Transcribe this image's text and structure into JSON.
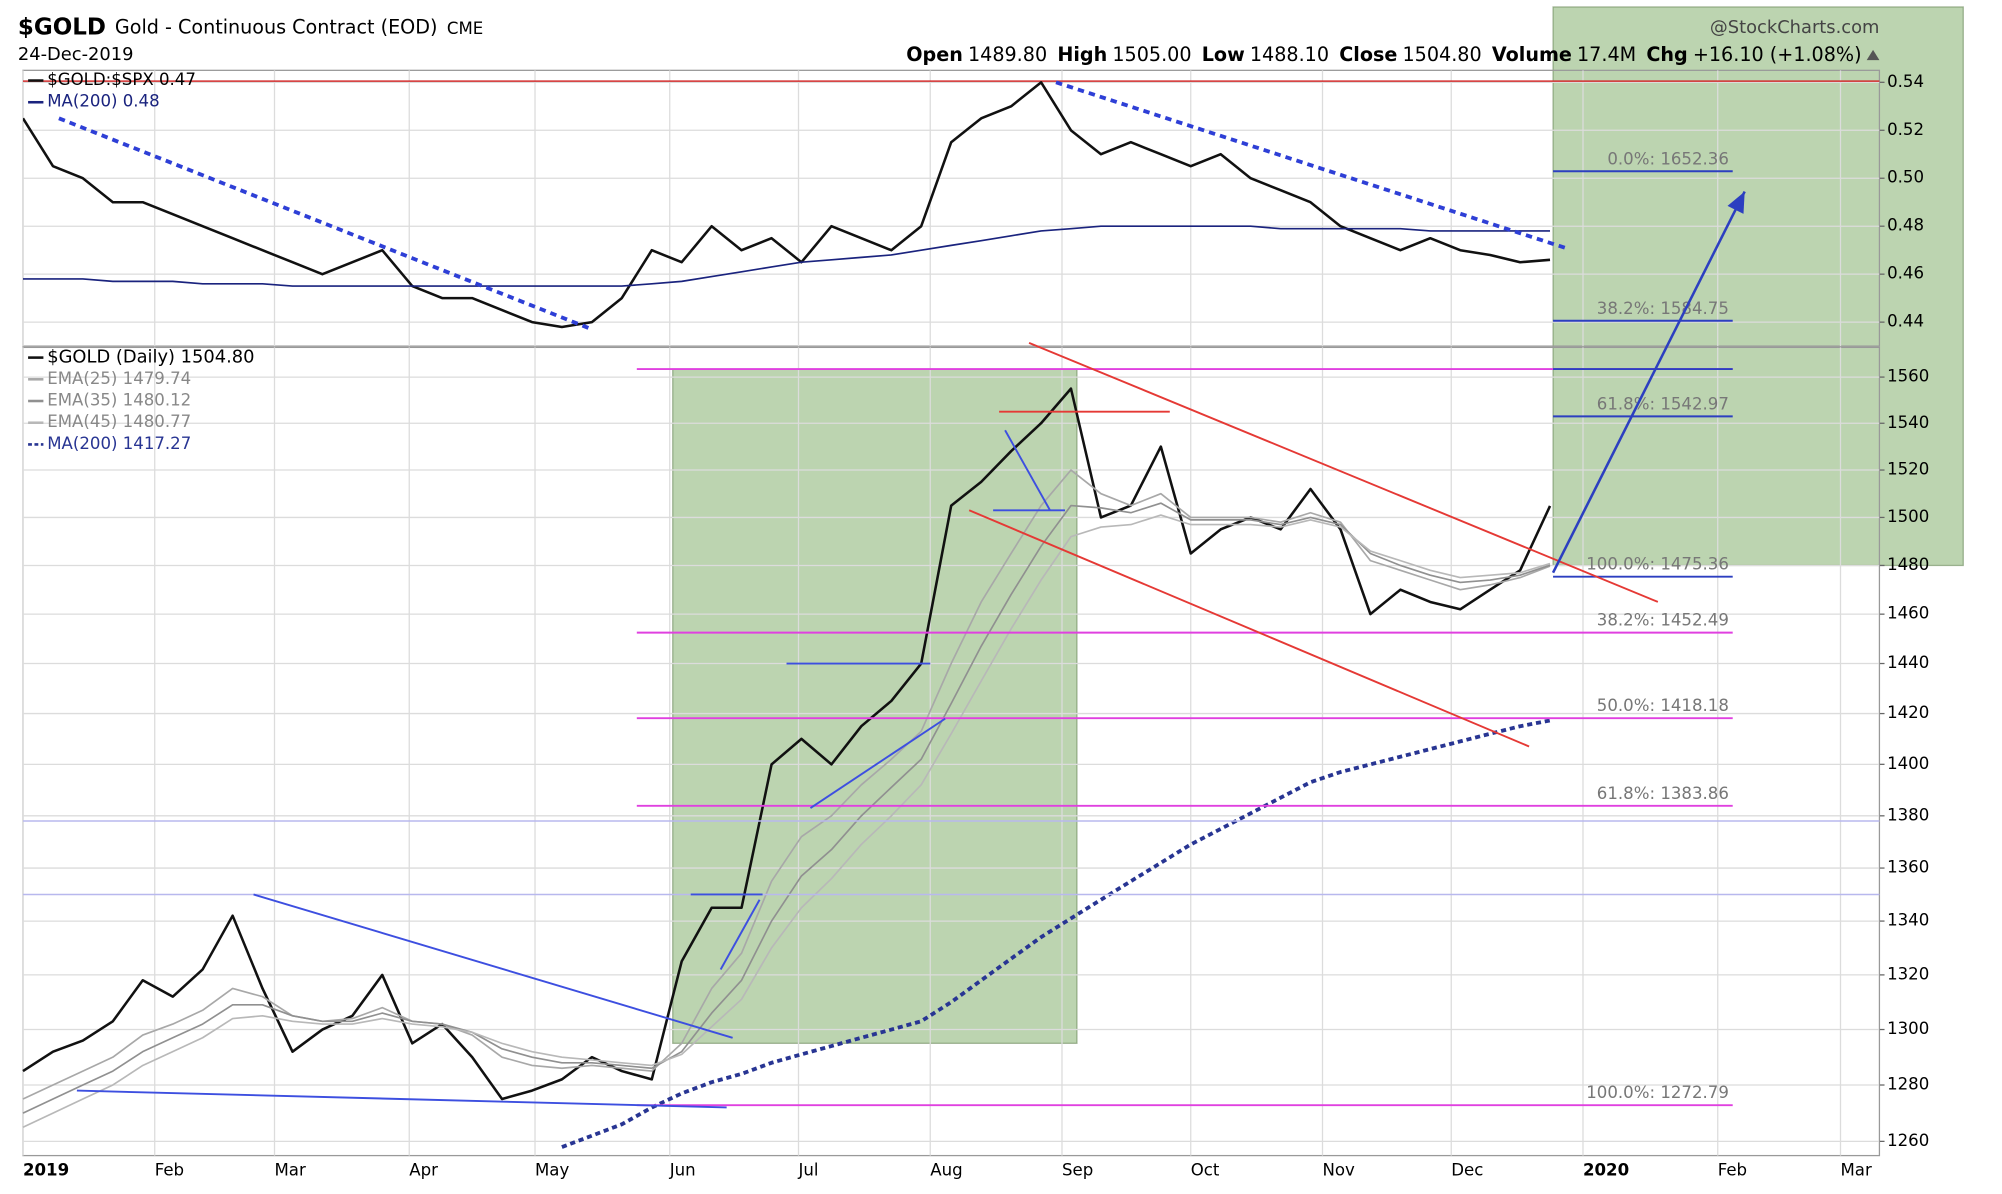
{
  "header": {
    "symbol": "$GOLD",
    "name": "Gold - Continuous Contract (EOD)",
    "exchange": "CME",
    "date": "24-Dec-2019",
    "source": "@StockCharts.com",
    "quote": [
      {
        "label": "Open",
        "value": "1489.80"
      },
      {
        "label": "High",
        "value": "1505.00"
      },
      {
        "label": "Low",
        "value": "1488.10"
      },
      {
        "label": "Close",
        "value": "1504.80"
      },
      {
        "label": "Volume",
        "value": "17.4M"
      },
      {
        "label": "Chg",
        "value": "+16.10 (+1.08%)"
      }
    ]
  },
  "chart_data": [
    {
      "type": "line",
      "x": [
        0,
        1,
        2,
        3,
        4,
        5,
        6,
        7,
        8,
        9,
        10,
        11,
        12,
        13,
        14,
        15,
        16,
        17,
        18,
        19,
        20,
        21,
        22,
        23,
        24,
        25,
        26,
        27,
        28,
        29,
        30,
        31,
        32,
        33,
        34,
        35,
        36,
        37,
        38,
        39,
        40,
        41,
        42,
        43,
        44,
        45,
        46,
        47,
        48,
        49,
        50,
        51
      ],
      "xlim": [
        0,
        62
      ],
      "xticks": [
        0,
        4.4,
        8.4,
        12.9,
        17.1,
        21.6,
        25.9,
        30.3,
        34.7,
        39,
        43.4,
        47.7,
        52.1,
        56.6,
        60.7
      ],
      "ylim": [
        0.43,
        0.545
      ],
      "yticks": [
        0.44,
        0.46,
        0.48,
        {
          "value": 0.5,
          "label": "0.50"
        },
        0.52,
        0.54
      ],
      "series": [
        {
          "name": "$GOLD:$SPX 0.47",
          "color": "#111111",
          "values": [
            0.525,
            0.505,
            0.5,
            0.49,
            0.49,
            0.485,
            0.48,
            0.475,
            0.47,
            0.465,
            0.46,
            0.465,
            0.47,
            0.455,
            0.45,
            0.45,
            0.445,
            0.44,
            0.438,
            0.44,
            0.45,
            0.47,
            0.465,
            0.48,
            0.47,
            0.475,
            0.465,
            0.48,
            0.475,
            0.47,
            0.48,
            0.515,
            0.525,
            0.53,
            0.54,
            0.52,
            0.51,
            0.515,
            0.51,
            0.505,
            0.51,
            0.5,
            0.495,
            0.49,
            0.48,
            0.475,
            0.47,
            0.475,
            0.47,
            0.468,
            0.465,
            0.466
          ]
        },
        {
          "name": "MA(200) 0.48",
          "color": "#1a237e",
          "values": [
            0.458,
            0.458,
            0.458,
            0.457,
            0.457,
            0.457,
            0.456,
            0.456,
            0.456,
            0.455,
            0.455,
            0.455,
            0.455,
            0.455,
            0.455,
            0.455,
            0.455,
            0.455,
            0.455,
            0.455,
            0.455,
            0.456,
            0.457,
            0.459,
            0.461,
            0.463,
            0.465,
            0.466,
            0.467,
            0.468,
            0.47,
            0.472,
            0.474,
            0.476,
            0.478,
            0.479,
            0.48,
            0.48,
            0.48,
            0.48,
            0.48,
            0.48,
            0.479,
            0.479,
            0.479,
            0.479,
            0.479,
            0.478,
            0.478,
            0.478,
            0.478,
            0.478
          ]
        }
      ],
      "hlines": [
        {
          "value": 0.5405,
          "color": "#d32f2f"
        }
      ],
      "trendlines": [
        {
          "x": [
            1.2,
            19
          ],
          "y": [
            0.525,
            0.437
          ],
          "color": "#2e3fd6",
          "dash": true
        },
        {
          "x": [
            34.5,
            51.5
          ],
          "y": [
            0.54,
            0.471
          ],
          "color": "#2e3fd6",
          "dash": true
        }
      ]
    },
    {
      "type": "line",
      "log_scale": true,
      "x": [
        0,
        1,
        2,
        3,
        4,
        5,
        6,
        7,
        8,
        9,
        10,
        11,
        12,
        13,
        14,
        15,
        16,
        17,
        18,
        19,
        20,
        21,
        22,
        23,
        24,
        25,
        26,
        27,
        28,
        29,
        30,
        31,
        32,
        33,
        34,
        35,
        36,
        37,
        38,
        39,
        40,
        41,
        42,
        43,
        44,
        45,
        46,
        47,
        48,
        49,
        50,
        51
      ],
      "xlim": [
        0,
        62
      ],
      "xticks": [
        {
          "value": 0,
          "label": "2019"
        },
        {
          "value": 4.4,
          "label": "Feb"
        },
        {
          "value": 8.4,
          "label": "Mar"
        },
        {
          "value": 12.9,
          "label": "Apr"
        },
        {
          "value": 17.1,
          "label": "May"
        },
        {
          "value": 21.6,
          "label": "Jun"
        },
        {
          "value": 25.9,
          "label": "Jul"
        },
        {
          "value": 30.3,
          "label": "Aug"
        },
        {
          "value": 34.7,
          "label": "Sep"
        },
        {
          "value": 39,
          "label": "Oct"
        },
        {
          "value": 43.4,
          "label": "Nov"
        },
        {
          "value": 47.7,
          "label": "Dec"
        },
        {
          "value": 52.1,
          "label": "2020"
        },
        {
          "value": 56.6,
          "label": "Feb"
        },
        {
          "value": 60.7,
          "label": "Mar"
        }
      ],
      "ylim": [
        1255,
        1573
      ],
      "yticks": [
        1260,
        1280,
        1300,
        1320,
        1340,
        1360,
        1380,
        1400,
        1420,
        1440,
        1460,
        1480,
        1500,
        1520,
        1540,
        1560
      ],
      "series": [
        {
          "name": "$GOLD (Daily) 1504.80",
          "color": "#111111",
          "values": [
            1285,
            1292,
            1296,
            1303,
            1318,
            1312,
            1322,
            1342,
            1315,
            1292,
            1300,
            1305,
            1320,
            1295,
            1302,
            1290,
            1275,
            1278,
            1282,
            1290,
            1285,
            1282,
            1325,
            1345,
            1345,
            1400,
            1410,
            1400,
            1415,
            1425,
            1440,
            1505,
            1515,
            1528,
            1540,
            1555,
            1500,
            1505,
            1530,
            1485,
            1495,
            1500,
            1495,
            1512,
            1495,
            1460,
            1470,
            1465,
            1462,
            1470,
            1478,
            1504.8
          ]
        },
        {
          "name": "EMA(25) 1479.74",
          "color": "#a8a8a8",
          "values": [
            1275,
            1280,
            1285,
            1290,
            1298,
            1302,
            1307,
            1315,
            1312,
            1305,
            1303,
            1304,
            1308,
            1303,
            1302,
            1298,
            1290,
            1287,
            1286,
            1287,
            1286,
            1285,
            1295,
            1315,
            1328,
            1355,
            1372,
            1380,
            1392,
            1402,
            1413,
            1440,
            1465,
            1485,
            1505,
            1520,
            1510,
            1505,
            1510,
            1500,
            1500,
            1500,
            1498,
            1502,
            1498,
            1482,
            1478,
            1474,
            1470,
            1472,
            1475,
            1479.74
          ]
        },
        {
          "name": "EMA(35) 1480.12",
          "color": "#909090",
          "values": [
            1270,
            1275,
            1280,
            1285,
            1292,
            1297,
            1302,
            1309,
            1309,
            1305,
            1303,
            1303,
            1306,
            1303,
            1302,
            1299,
            1293,
            1290,
            1288,
            1288,
            1287,
            1286,
            1292,
            1306,
            1318,
            1340,
            1357,
            1367,
            1380,
            1391,
            1402,
            1424,
            1447,
            1468,
            1488,
            1505,
            1504,
            1502,
            1506,
            1499,
            1499,
            1499,
            1497,
            1500,
            1497,
            1485,
            1480,
            1476,
            1473,
            1474,
            1476,
            1480.12
          ]
        },
        {
          "name": "EMA(45) 1480.77",
          "color": "#b8b8b8",
          "values": [
            1265,
            1270,
            1275,
            1280,
            1287,
            1292,
            1297,
            1304,
            1305,
            1303,
            1302,
            1302,
            1304,
            1302,
            1301,
            1299,
            1295,
            1292,
            1290,
            1289,
            1288,
            1287,
            1291,
            1301,
            1311,
            1330,
            1345,
            1356,
            1369,
            1380,
            1392,
            1412,
            1433,
            1454,
            1474,
            1492,
            1496,
            1497,
            1501,
            1497,
            1497,
            1497,
            1496,
            1499,
            1496,
            1486,
            1482,
            1478,
            1475,
            1476,
            1477,
            1480.77
          ]
        },
        {
          "name": "MA(200) 1417.27",
          "color": "#283593",
          "dash": true,
          "values": [
            null,
            null,
            null,
            null,
            null,
            null,
            null,
            null,
            null,
            null,
            null,
            null,
            null,
            null,
            null,
            null,
            null,
            null,
            1258,
            1262,
            1266,
            1272,
            1277,
            1281,
            1284,
            1288,
            1291,
            1294,
            1297,
            1300,
            1303,
            1310,
            1318,
            1326,
            1334,
            1341,
            1348,
            1355,
            1362,
            1369,
            1375,
            1381,
            1387,
            1393,
            1397,
            1400,
            1403,
            1406,
            1409,
            1412,
            1415,
            1417.27
          ]
        }
      ],
      "hlines": [
        {
          "value": 1378,
          "color": "#b8b8ee"
        },
        {
          "value": 1350,
          "color": "#b8b8ee"
        }
      ],
      "boxes": [
        {
          "x": [
            21.7,
            35.2
          ],
          "y": [
            1295,
            1563.5
          ],
          "color": "#6a9f4f"
        },
        {
          "x": [
            51.1,
            64.8
          ],
          "y": [
            1480,
            1730
          ],
          "color": "#6a9f4f"
        }
      ],
      "fib": [
        {
          "value": 1563.5,
          "x": [
            20.5,
            57.1
          ],
          "color": "#e040e0"
        },
        {
          "value": 1452.49,
          "x": [
            20.5,
            57.1
          ],
          "color": "#e040e0",
          "label": "38.2%: 1452.49"
        },
        {
          "value": 1418.18,
          "x": [
            20.5,
            57.1
          ],
          "color": "#e040e0",
          "label": "50.0%: 1418.18"
        },
        {
          "value": 1383.86,
          "x": [
            20.5,
            57.1
          ],
          "color": "#e040e0",
          "label": "61.8%: 1383.86"
        },
        {
          "value": 1272.79,
          "x": [
            20.5,
            57.1
          ],
          "color": "#e040e0",
          "label": "100.0%: 1272.79"
        },
        {
          "value": 1652.36,
          "x": [
            51.1,
            57.1
          ],
          "color": "#2c3fc0",
          "label": "0.0%: 1652.36"
        },
        {
          "value": 1584.75,
          "x": [
            51.1,
            57.1
          ],
          "color": "#2c3fc0",
          "label": "38.2%: 1584.75"
        },
        {
          "value": 1563.5,
          "x": [
            51.1,
            57.1
          ],
          "color": "#2c3fc0"
        },
        {
          "value": 1542.97,
          "x": [
            51.1,
            57.1
          ],
          "color": "#2c3fc0",
          "label": "61.8%: 1542.97"
        },
        {
          "value": 1475.36,
          "x": [
            51.1,
            57.1
          ],
          "color": "#2c3fc0",
          "label": "100.0%: 1475.36"
        }
      ],
      "trendlines": [
        {
          "x": [
            7.7,
            23.7
          ],
          "y": [
            1350,
            1297
          ],
          "color": "#3d4fe0"
        },
        {
          "x": [
            1.8,
            23.5
          ],
          "y": [
            1278,
            1272
          ],
          "color": "#3d4fe0"
        },
        {
          "x": [
            22.3,
            24.7
          ],
          "y": [
            1350,
            1350
          ],
          "color": "#3d4fe0"
        },
        {
          "x": [
            23.3,
            24.6
          ],
          "y": [
            1322,
            1348
          ],
          "color": "#3d4fe0"
        },
        {
          "x": [
            25.5,
            30.3
          ],
          "y": [
            1440,
            1440
          ],
          "color": "#3d4fe0"
        },
        {
          "x": [
            26.3,
            30.8
          ],
          "y": [
            1383,
            1418
          ],
          "color": "#3d4fe0"
        },
        {
          "x": [
            32.4,
            34.8
          ],
          "y": [
            1503,
            1503
          ],
          "color": "#3d4fe0"
        },
        {
          "x": [
            32.8,
            34.3
          ],
          "y": [
            1537,
            1503
          ],
          "color": "#3d4fe0"
        },
        {
          "x": [
            33.6,
            54.6
          ],
          "y": [
            1575,
            1465
          ],
          "color": "#e53935"
        },
        {
          "x": [
            31.6,
            50.3
          ],
          "y": [
            1503,
            1407
          ],
          "color": "#e53935"
        },
        {
          "x": [
            32.6,
            38.3
          ],
          "y": [
            1545,
            1545
          ],
          "color": "#e53935"
        }
      ],
      "arrow": {
        "x": [
          51.1,
          57.5
        ],
        "y": [
          1477,
          1643
        ],
        "color": "#2c3fc0"
      }
    }
  ]
}
